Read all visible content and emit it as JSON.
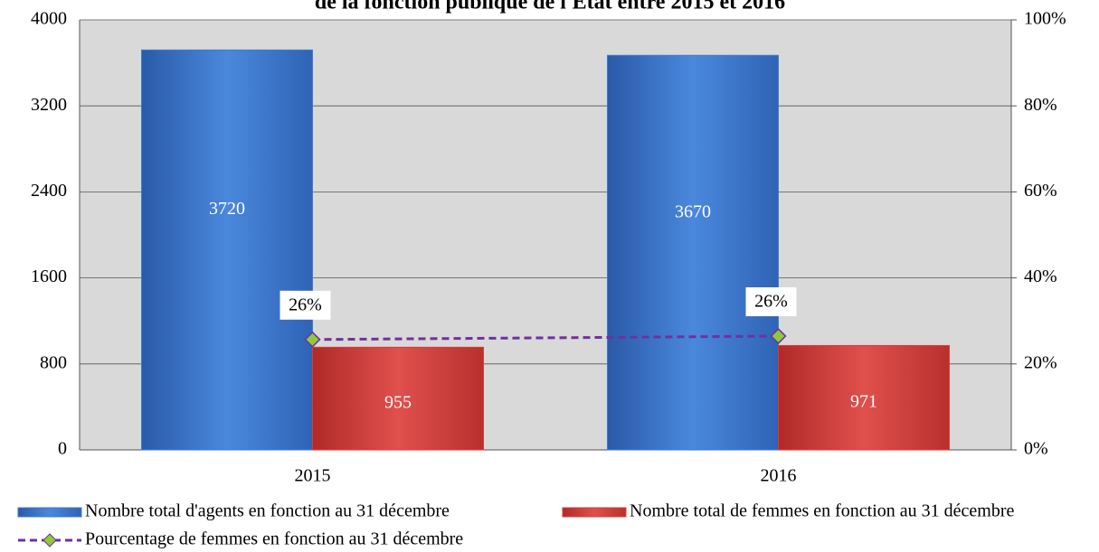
{
  "chart_data": {
    "type": "bar",
    "title": "de la fonction publique de l'État entre 2015 et 2016",
    "categories": [
      "2015",
      "2016"
    ],
    "series": [
      {
        "name": "Nombre total d'agents en fonction au 31 décembre",
        "type": "bar",
        "color": "#3f7ad0",
        "values": [
          3720,
          3670
        ]
      },
      {
        "name": "Nombre total de femmes en fonction au 31 décembre",
        "type": "bar",
        "color": "#d63c3a",
        "values": [
          955,
          971
        ]
      },
      {
        "name": "Pourcentage de femmes en fonction au 31 décembre",
        "type": "line",
        "axis": "y2",
        "color": "#7030a0",
        "marker_color": "#8fc93a",
        "values": [
          25.67,
          26.46
        ],
        "value_labels": [
          "26%",
          "26%"
        ]
      }
    ],
    "ylim": [
      0,
      4000
    ],
    "yticks": [
      0,
      800,
      1600,
      2400,
      3200,
      4000
    ],
    "y2lim": [
      0,
      100
    ],
    "y2ticks": [
      {
        "value": 0,
        "label": "0%"
      },
      {
        "value": 20,
        "label": "20%"
      },
      {
        "value": 40,
        "label": "40%"
      },
      {
        "value": 60,
        "label": "60%"
      },
      {
        "value": 80,
        "label": "80%"
      },
      {
        "value": 100,
        "label": "100%"
      }
    ],
    "grid": true,
    "legend": "bottom"
  }
}
